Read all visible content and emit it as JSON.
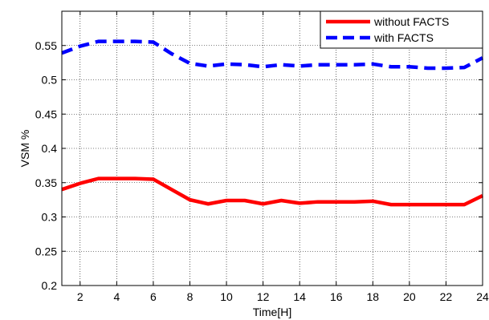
{
  "chart_data": {
    "type": "line",
    "title": "",
    "xlabel": "Time[H]",
    "ylabel": "VSM %",
    "xlim": [
      1,
      24
    ],
    "ylim": [
      0.2,
      0.6
    ],
    "xticks": [
      2,
      4,
      6,
      8,
      10,
      12,
      14,
      16,
      18,
      20,
      22,
      24
    ],
    "yticks": [
      0.2,
      0.25,
      0.3,
      0.35,
      0.4,
      0.45,
      0.5,
      0.55
    ],
    "grid": true,
    "legend_position": "top-right",
    "x": [
      1,
      2,
      3,
      4,
      5,
      6,
      7,
      8,
      9,
      10,
      11,
      12,
      13,
      14,
      15,
      16,
      17,
      18,
      19,
      20,
      21,
      22,
      23,
      24
    ],
    "series": [
      {
        "name": "without FACTS",
        "color": "#ff0000",
        "style": "solid",
        "values": [
          0.34,
          0.349,
          0.356,
          0.356,
          0.356,
          0.355,
          0.34,
          0.325,
          0.319,
          0.324,
          0.324,
          0.319,
          0.324,
          0.32,
          0.322,
          0.322,
          0.322,
          0.323,
          0.318,
          0.318,
          0.318,
          0.318,
          0.318,
          0.331
        ]
      },
      {
        "name": "with FACTS",
        "color": "#0000ff",
        "style": "dashed",
        "values": [
          0.539,
          0.549,
          0.556,
          0.556,
          0.556,
          0.555,
          0.538,
          0.524,
          0.52,
          0.523,
          0.522,
          0.519,
          0.522,
          0.52,
          0.522,
          0.522,
          0.522,
          0.523,
          0.519,
          0.519,
          0.517,
          0.517,
          0.518,
          0.532
        ]
      }
    ]
  }
}
